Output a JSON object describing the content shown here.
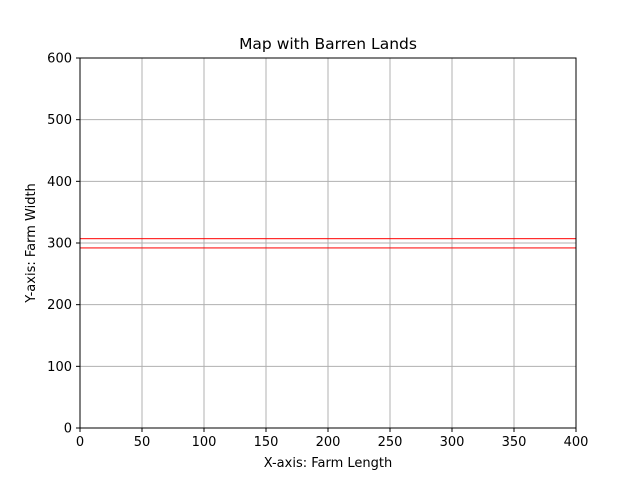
{
  "chart_data": {
    "type": "rectangles",
    "title": "Map with Barren Lands",
    "xlabel": "X-axis: Farm Length",
    "ylabel": "Y-axis: Farm Width",
    "xlim": [
      0,
      400
    ],
    "ylim": [
      0,
      600
    ],
    "x_ticks": [
      0,
      50,
      100,
      150,
      200,
      250,
      300,
      350,
      400
    ],
    "y_ticks": [
      0,
      100,
      200,
      300,
      400,
      500,
      600
    ],
    "grid": true,
    "legend": "none",
    "rectangles": [
      {
        "x0": 0,
        "y0": 292,
        "x1": 400,
        "y1": 307,
        "edgecolor": "#ff0000",
        "facecolor": "none"
      }
    ]
  },
  "colors": {
    "grid": "#b0b0b0",
    "axes": "#000000",
    "rect_edge": "#ff0000"
  }
}
